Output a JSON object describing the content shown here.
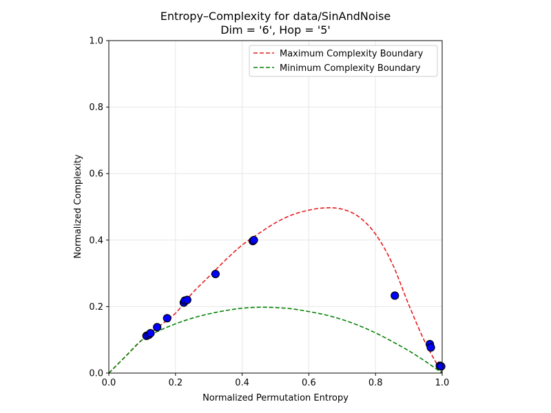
{
  "chart_data": {
    "type": "scatter",
    "title": "Entropy–Complexity for data/SinAndNoise",
    "subtitle": "Dim = '6', Hop = '5'",
    "xlabel": "Normalized Permutation Entropy",
    "ylabel": "Normalized Complexity",
    "xlim": [
      0.0,
      1.0
    ],
    "ylim": [
      0.0,
      1.0
    ],
    "xticks": [
      "0.0",
      "0.2",
      "0.4",
      "0.6",
      "0.8",
      "1.0"
    ],
    "yticks": [
      "0.0",
      "0.2",
      "0.4",
      "0.6",
      "0.8",
      "1.0"
    ],
    "grid": true,
    "legend_position": "top-right",
    "series": [
      {
        "name": "Maximum Complexity Boundary",
        "style": "dashed-line",
        "color": "#e41a1c",
        "x": [
          0.0,
          0.05,
          0.1,
          0.15,
          0.2,
          0.25,
          0.3,
          0.35,
          0.4,
          0.45,
          0.5,
          0.55,
          0.6,
          0.65,
          0.7,
          0.75,
          0.8,
          0.85,
          0.9,
          0.95,
          1.0
        ],
        "y": [
          0.0,
          0.05,
          0.1,
          0.14,
          0.18,
          0.24,
          0.29,
          0.34,
          0.385,
          0.42,
          0.452,
          0.476,
          0.49,
          0.497,
          0.493,
          0.47,
          0.418,
          0.33,
          0.205,
          0.09,
          0.0
        ]
      },
      {
        "name": "Minimum Complexity Boundary",
        "style": "dashed-line",
        "color": "#008000",
        "x": [
          0.0,
          0.05,
          0.1,
          0.15,
          0.2,
          0.25,
          0.3,
          0.35,
          0.4,
          0.45,
          0.5,
          0.55,
          0.6,
          0.65,
          0.7,
          0.75,
          0.8,
          0.85,
          0.9,
          0.95,
          1.0
        ],
        "y": [
          0.0,
          0.05,
          0.1,
          0.127,
          0.148,
          0.165,
          0.178,
          0.188,
          0.195,
          0.198,
          0.197,
          0.193,
          0.185,
          0.175,
          0.161,
          0.143,
          0.121,
          0.095,
          0.067,
          0.035,
          0.0
        ]
      },
      {
        "name": "",
        "style": "points",
        "color": "#0000ff",
        "edge_color": "#000000",
        "x": [
          0.113,
          0.12,
          0.125,
          0.145,
          0.175,
          0.225,
          0.228,
          0.235,
          0.32,
          0.432,
          0.435,
          0.858,
          0.963,
          0.966,
          0.993,
          0.997
        ],
        "y": [
          0.112,
          0.115,
          0.12,
          0.138,
          0.165,
          0.212,
          0.218,
          0.22,
          0.298,
          0.397,
          0.4,
          0.233,
          0.087,
          0.077,
          0.022,
          0.02
        ]
      }
    ]
  }
}
